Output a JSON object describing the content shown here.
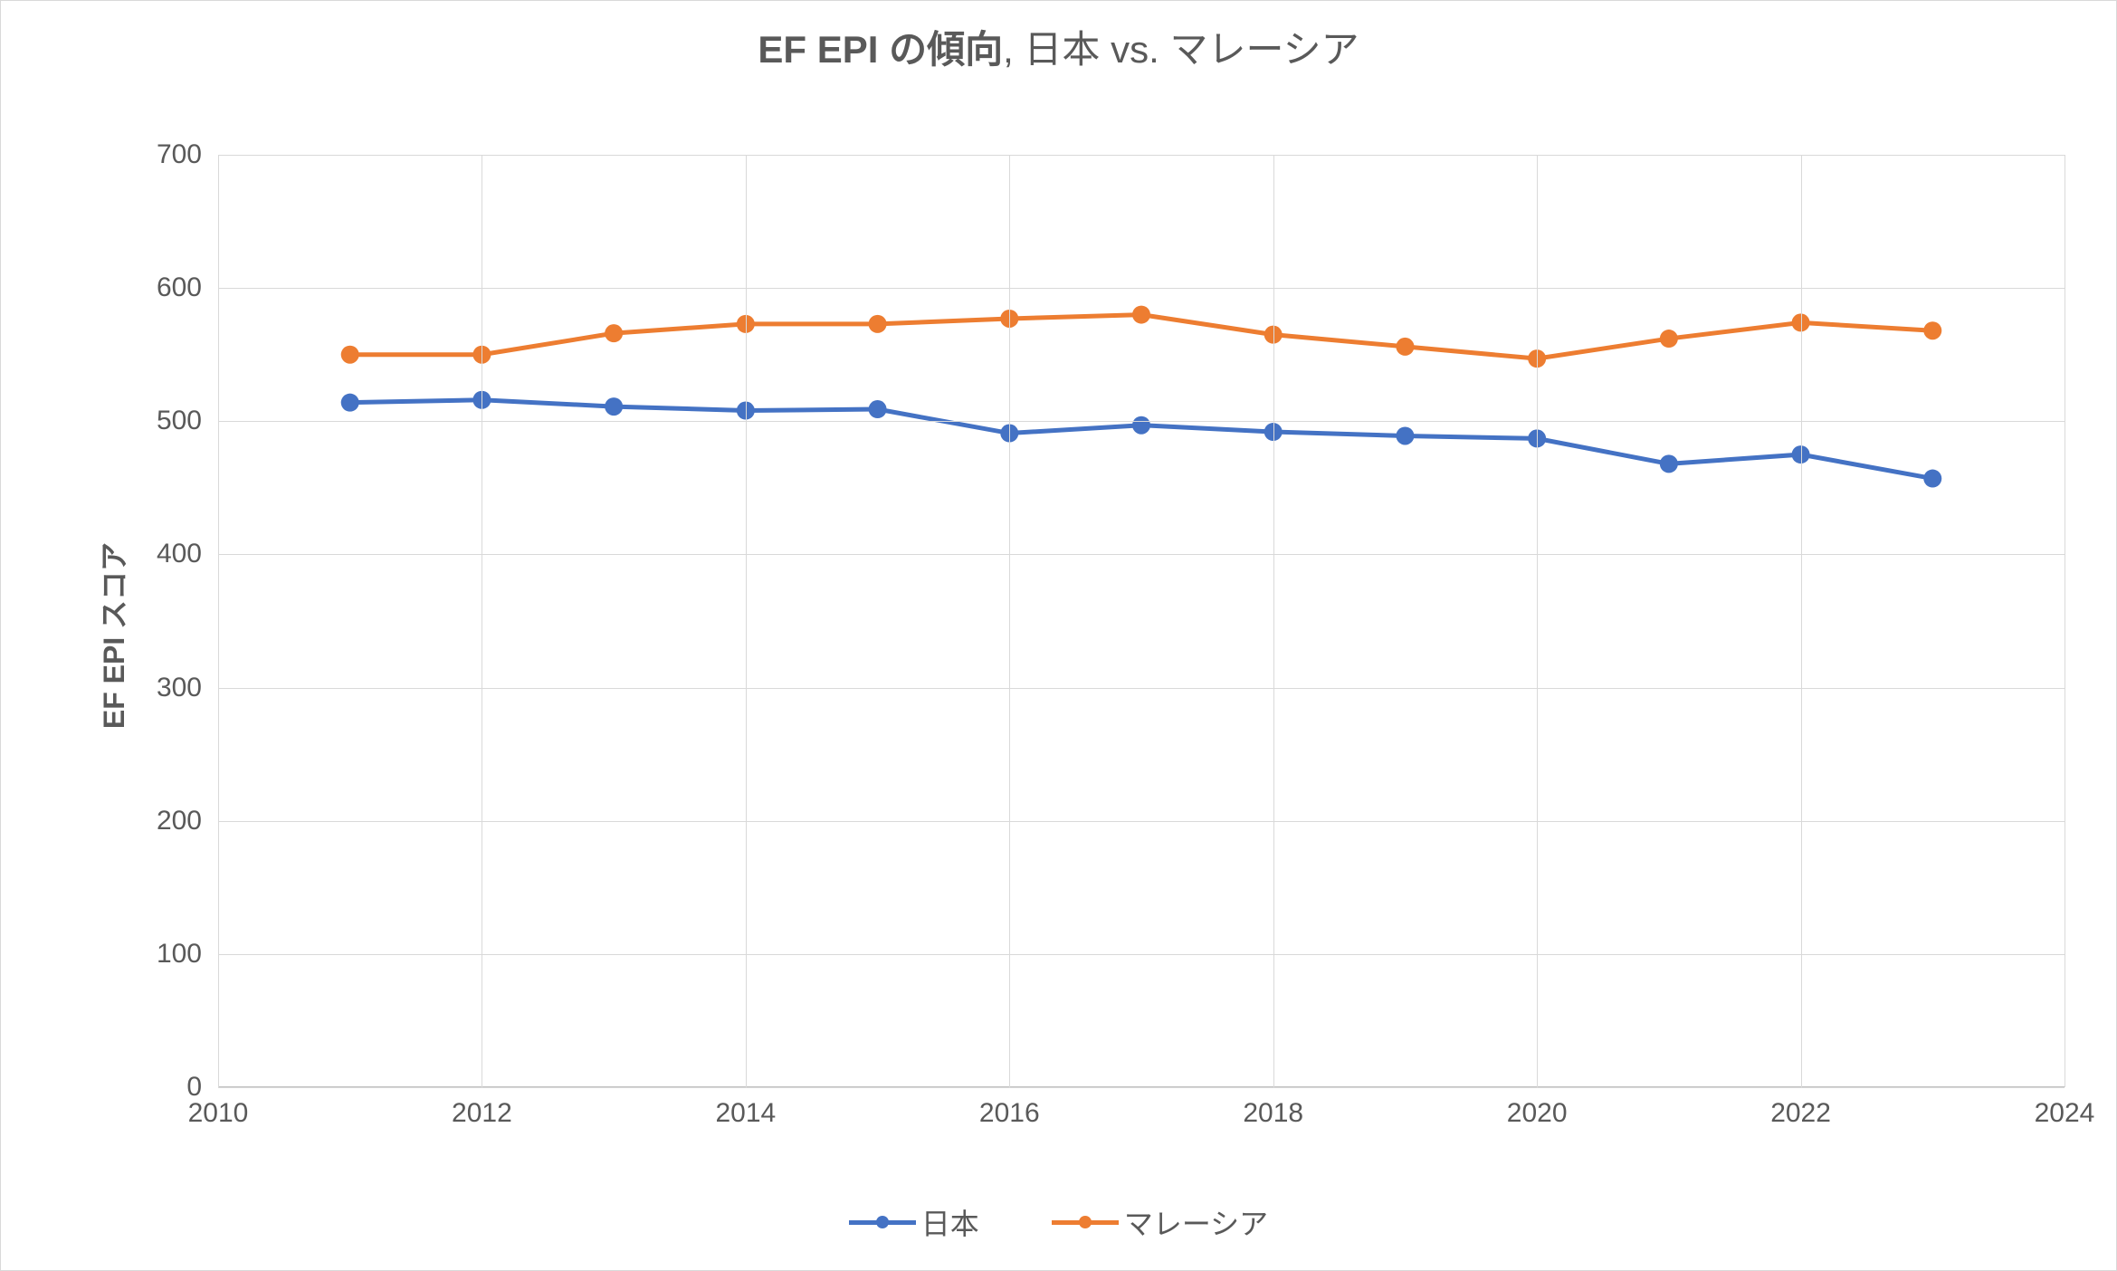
{
  "chart": {
    "type": "line",
    "title_bold": "EF EPI の傾向",
    "title_rest": ", 日本 vs. マレーシア",
    "title_fontsize": 42,
    "title_color": "#595959",
    "y_axis_label": "EF EPI スコア",
    "label_fontsize": 32,
    "label_color": "#595959",
    "background_color": "#ffffff",
    "border_color": "#d9d9d9",
    "grid_color": "#d9d9d9",
    "axis_color": "#bfbfbf",
    "tick_font_color": "#595959",
    "tick_fontsize": 30,
    "xlim": [
      2010,
      2024
    ],
    "x_ticks": [
      2010,
      2012,
      2014,
      2016,
      2018,
      2020,
      2022,
      2024
    ],
    "ylim": [
      0,
      700
    ],
    "y_ticks": [
      0,
      100,
      200,
      300,
      400,
      500,
      600,
      700
    ],
    "line_width": 5,
    "marker_radius": 10,
    "x_values": [
      2011,
      2012,
      2013,
      2014,
      2015,
      2016,
      2017,
      2018,
      2019,
      2020,
      2021,
      2022,
      2023
    ],
    "series": [
      {
        "name": "日本",
        "color": "#4472c4",
        "values": [
          514,
          516,
          511,
          508,
          509,
          491,
          497,
          492,
          489,
          487,
          468,
          475,
          457
        ]
      },
      {
        "name": "マレーシア",
        "color": "#ed7d31",
        "values": [
          550,
          550,
          566,
          573,
          573,
          577,
          580,
          565,
          556,
          547,
          562,
          574,
          568
        ]
      }
    ],
    "legend_fontsize": 32
  }
}
